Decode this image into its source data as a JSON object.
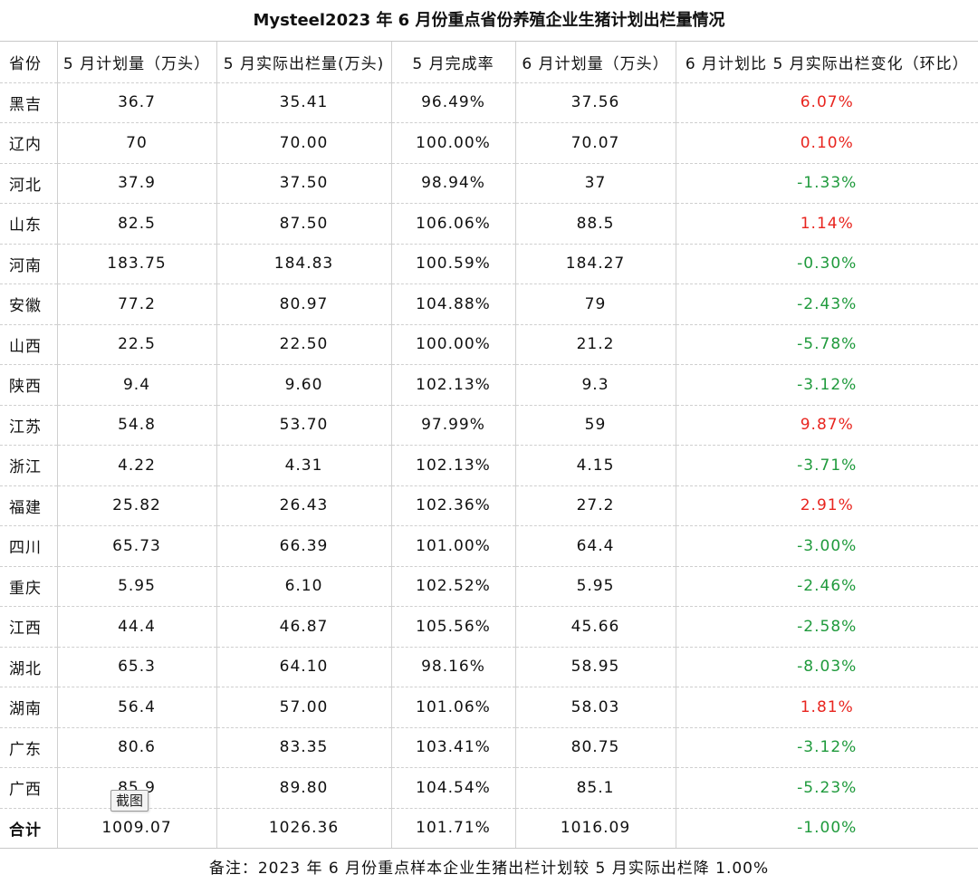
{
  "title": "Mysteel2023 年 6 月份重点省份养殖企业生猪计划出栏量情况",
  "columns": [
    "省份",
    "5 月计划量（万头）",
    "5 月实际出栏量(万头)",
    "5 月完成率",
    "6 月计划量（万头）",
    "6 月计划比 5 月实际出栏变化（环比）"
  ],
  "rows": [
    {
      "province": "黑吉",
      "may_plan": "36.7",
      "may_actual": "35.41",
      "may_rate": "96.49%",
      "jun_plan": "37.56",
      "change": "6.07%",
      "sign": "pos"
    },
    {
      "province": "辽内",
      "may_plan": "70",
      "may_actual": "70.00",
      "may_rate": "100.00%",
      "jun_plan": "70.07",
      "change": "0.10%",
      "sign": "pos"
    },
    {
      "province": "河北",
      "may_plan": "37.9",
      "may_actual": "37.50",
      "may_rate": "98.94%",
      "jun_plan": "37",
      "change": "-1.33%",
      "sign": "neg"
    },
    {
      "province": "山东",
      "may_plan": "82.5",
      "may_actual": "87.50",
      "may_rate": "106.06%",
      "jun_plan": "88.5",
      "change": "1.14%",
      "sign": "pos"
    },
    {
      "province": "河南",
      "may_plan": "183.75",
      "may_actual": "184.83",
      "may_rate": "100.59%",
      "jun_plan": "184.27",
      "change": "-0.30%",
      "sign": "neg"
    },
    {
      "province": "安徽",
      "may_plan": "77.2",
      "may_actual": "80.97",
      "may_rate": "104.88%",
      "jun_plan": "79",
      "change": "-2.43%",
      "sign": "neg"
    },
    {
      "province": "山西",
      "may_plan": "22.5",
      "may_actual": "22.50",
      "may_rate": "100.00%",
      "jun_plan": "21.2",
      "change": "-5.78%",
      "sign": "neg"
    },
    {
      "province": "陕西",
      "may_plan": "9.4",
      "may_actual": "9.60",
      "may_rate": "102.13%",
      "jun_plan": "9.3",
      "change": "-3.12%",
      "sign": "neg"
    },
    {
      "province": "江苏",
      "may_plan": "54.8",
      "may_actual": "53.70",
      "may_rate": "97.99%",
      "jun_plan": "59",
      "change": "9.87%",
      "sign": "pos"
    },
    {
      "province": "浙江",
      "may_plan": "4.22",
      "may_actual": "4.31",
      "may_rate": "102.13%",
      "jun_plan": "4.15",
      "change": "-3.71%",
      "sign": "neg"
    },
    {
      "province": "福建",
      "may_plan": "25.82",
      "may_actual": "26.43",
      "may_rate": "102.36%",
      "jun_plan": "27.2",
      "change": "2.91%",
      "sign": "pos"
    },
    {
      "province": "四川",
      "may_plan": "65.73",
      "may_actual": "66.39",
      "may_rate": "101.00%",
      "jun_plan": "64.4",
      "change": "-3.00%",
      "sign": "neg"
    },
    {
      "province": "重庆",
      "may_plan": "5.95",
      "may_actual": "6.10",
      "may_rate": "102.52%",
      "jun_plan": "5.95",
      "change": "-2.46%",
      "sign": "neg"
    },
    {
      "province": "江西",
      "may_plan": "44.4",
      "may_actual": "46.87",
      "may_rate": "105.56%",
      "jun_plan": "45.66",
      "change": "-2.58%",
      "sign": "neg"
    },
    {
      "province": "湖北",
      "may_plan": "65.3",
      "may_actual": "64.10",
      "may_rate": "98.16%",
      "jun_plan": "58.95",
      "change": "-8.03%",
      "sign": "neg"
    },
    {
      "province": "湖南",
      "may_plan": "56.4",
      "may_actual": "57.00",
      "may_rate": "101.06%",
      "jun_plan": "58.03",
      "change": "1.81%",
      "sign": "pos"
    },
    {
      "province": "广东",
      "may_plan": "80.6",
      "may_actual": "83.35",
      "may_rate": "103.41%",
      "jun_plan": "80.75",
      "change": "-3.12%",
      "sign": "neg"
    },
    {
      "province": "广西",
      "may_plan": "85.9",
      "may_actual": "89.80",
      "may_rate": "104.54%",
      "jun_plan": "85.1",
      "change": "-5.23%",
      "sign": "neg"
    }
  ],
  "total": {
    "province": "合计",
    "may_plan": "1009.07",
    "may_actual": "1026.36",
    "may_rate": "101.71%",
    "jun_plan": "1016.09",
    "change": "-1.00%",
    "sign": "neg"
  },
  "note": "备注：2023 年 6 月份重点样本企业生猪出栏计划较 5 月实际出栏降 1.00%",
  "tooltip": "截图",
  "colors": {
    "positive": "#e8251f",
    "negative": "#1f9a3c"
  }
}
